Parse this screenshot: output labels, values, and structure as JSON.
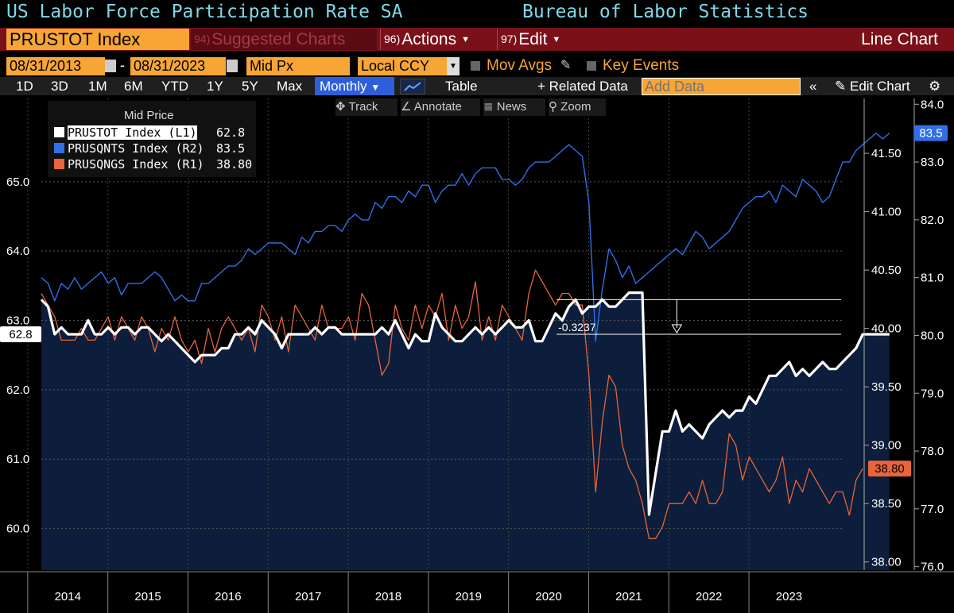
{
  "header": {
    "title": "US Labor Force Participation Rate SA",
    "source": "Bureau of Labor Statistics"
  },
  "menu": {
    "ticker": "PRUSTOT Index",
    "suggested_num": "94)",
    "suggested": "Suggested Charts",
    "actions_num": "96)",
    "actions": "Actions",
    "edit_num": "97)",
    "edit": "Edit",
    "chart_type": "Line Chart"
  },
  "params": {
    "start_date": "08/31/2013",
    "dash": "-",
    "end_date": "08/31/2023",
    "field": "Mid Px",
    "currency": "Local CCY",
    "mov_avgs": "Mov Avgs",
    "key_events": "Key Events"
  },
  "range": {
    "buttons": [
      "1D",
      "3D",
      "1M",
      "6M",
      "YTD",
      "1Y",
      "5Y",
      "Max"
    ],
    "frequency": "Monthly",
    "table": "Table",
    "related": "+ Related Data",
    "add_data_placeholder": "Add Data",
    "edit_chart": "Edit Chart"
  },
  "subtools": {
    "track": "Track",
    "annotate": "Annotate",
    "news": "News",
    "zoom": "Zoom"
  },
  "legend": {
    "title": "Mid Price",
    "rows": [
      {
        "label": "PRUSTOT Index  (L1)",
        "value": "62.8",
        "color": "#ffffff"
      },
      {
        "label": "PRUSQNTS Index  (R2)",
        "value": "83.5",
        "color": "#2f6fe8"
      },
      {
        "label": "PRUSQNGS Index  (R1)",
        "value": "38.80",
        "color": "#e8643a"
      }
    ]
  },
  "chart_data": {
    "type": "line",
    "title": "US Labor Force Participation Rate SA",
    "x_range": [
      2013.67,
      2023.67
    ],
    "x_ticks": [
      "2014",
      "2015",
      "2016",
      "2017",
      "2018",
      "2019",
      "2020",
      "2021",
      "2022",
      "2023"
    ],
    "axes": {
      "L1": {
        "range": [
          59.4,
          66.2
        ],
        "ticks": [
          "60.0",
          "61.0",
          "62.0",
          "63.0",
          "64.0",
          "65.0"
        ]
      },
      "R1": {
        "range": [
          37.93,
          41.97
        ],
        "ticks": [
          "38.00",
          "38.50",
          "39.00",
          "39.50",
          "40.00",
          "40.50",
          "41.00",
          "41.50"
        ]
      },
      "R2": {
        "range": [
          75.94,
          84.1
        ],
        "ticks": [
          "76.0",
          "77.0",
          "78.0",
          "79.0",
          "80.0",
          "81.0",
          "82.0",
          "83.0",
          "84.0"
        ]
      }
    },
    "last_values": {
      "L1": "62.8",
      "R1": "38.80",
      "R2": "83.5"
    },
    "annotation": {
      "label": "-0.3237",
      "from": 63.3,
      "to": 62.8
    },
    "series": [
      {
        "name": "PRUSTOT Index",
        "axis": "L1",
        "color": "#ffffff",
        "x_start": 2013.67,
        "step": 0.0833333,
        "values": [
          63.3,
          63.2,
          62.8,
          62.9,
          62.8,
          62.8,
          62.8,
          63.0,
          62.8,
          62.8,
          62.9,
          62.8,
          62.9,
          62.9,
          62.8,
          62.9,
          62.9,
          62.8,
          62.7,
          62.8,
          62.7,
          62.6,
          62.5,
          62.4,
          62.5,
          62.5,
          62.5,
          62.6,
          62.6,
          62.8,
          62.8,
          62.9,
          62.8,
          63.0,
          62.9,
          62.8,
          62.6,
          62.8,
          62.8,
          62.8,
          62.8,
          62.9,
          62.8,
          62.9,
          62.9,
          62.8,
          62.8,
          62.8,
          62.8,
          62.8,
          62.8,
          62.9,
          62.8,
          63.0,
          62.8,
          62.6,
          62.8,
          62.7,
          62.7,
          63.1,
          62.9,
          62.8,
          62.7,
          62.7,
          62.8,
          62.9,
          62.8,
          62.9,
          62.8,
          62.9,
          63.0,
          62.9,
          62.9,
          63.0,
          62.7,
          62.7,
          62.9,
          63.1,
          63.0,
          63.2,
          63.3,
          63.1,
          63.2,
          63.2,
          63.3,
          63.2,
          63.2,
          63.3,
          63.4,
          63.4,
          63.4,
          60.2,
          60.8,
          61.4,
          61.4,
          61.7,
          61.4,
          61.5,
          61.4,
          61.3,
          61.5,
          61.6,
          61.7,
          61.6,
          61.7,
          61.7,
          61.9,
          61.8,
          62.0,
          62.2,
          62.2,
          62.3,
          62.4,
          62.2,
          62.3,
          62.2,
          62.3,
          62.4,
          62.3,
          62.3,
          62.4,
          62.5,
          62.6,
          62.8,
          62.8,
          62.8,
          62.8,
          62.8
        ]
      },
      {
        "name": "PRUSQNTS Index",
        "axis": "R2",
        "color": "#2f6fe8",
        "x_start": 2013.67,
        "step": 0.0833333,
        "values": [
          81.0,
          80.9,
          80.6,
          80.9,
          80.8,
          81.0,
          80.8,
          80.9,
          81.0,
          81.1,
          80.9,
          81.0,
          80.7,
          80.9,
          80.9,
          80.9,
          81.0,
          81.1,
          81.0,
          80.8,
          80.6,
          80.7,
          80.6,
          80.6,
          80.9,
          80.9,
          81.0,
          81.1,
          81.2,
          81.2,
          81.3,
          81.5,
          81.4,
          81.5,
          81.6,
          81.6,
          81.6,
          81.5,
          81.4,
          81.7,
          81.6,
          81.8,
          81.8,
          81.9,
          81.9,
          81.8,
          82.0,
          82.1,
          82.0,
          82.0,
          82.3,
          82.2,
          82.4,
          82.4,
          82.3,
          82.5,
          82.4,
          82.6,
          82.6,
          82.3,
          82.5,
          82.6,
          82.6,
          82.8,
          82.6,
          82.8,
          82.9,
          82.9,
          82.9,
          82.7,
          82.7,
          82.6,
          82.7,
          82.9,
          83.0,
          83.0,
          83.0,
          83.1,
          83.2,
          83.3,
          83.2,
          83.1,
          82.3,
          79.9,
          80.8,
          81.5,
          81.3,
          81.0,
          81.2,
          80.9,
          81.0,
          81.1,
          81.2,
          81.3,
          81.4,
          81.5,
          81.4,
          81.6,
          81.8,
          81.7,
          81.5,
          81.6,
          81.7,
          81.8,
          82.0,
          82.2,
          82.3,
          82.4,
          82.4,
          82.5,
          82.3,
          82.6,
          82.5,
          82.4,
          82.7,
          82.6,
          82.5,
          82.3,
          82.4,
          82.7,
          83.0,
          83.0,
          83.2,
          83.3,
          83.4,
          83.5,
          83.4,
          83.5
        ]
      },
      {
        "name": "PRUSQNGS Index",
        "axis": "R1",
        "color": "#e8643a",
        "x_start": 2013.67,
        "step": 0.0833333,
        "values": [
          40.3,
          40.2,
          40.1,
          39.9,
          39.9,
          39.9,
          40.0,
          39.9,
          39.9,
          40.0,
          40.1,
          39.9,
          40.1,
          40.0,
          39.9,
          40.1,
          40.0,
          39.8,
          40.0,
          39.9,
          40.1,
          39.9,
          39.8,
          39.9,
          39.7,
          40.0,
          39.8,
          40.0,
          40.1,
          40.0,
          39.9,
          40.0,
          39.8,
          40.2,
          40.1,
          39.9,
          40.1,
          39.8,
          40.2,
          40.1,
          40.0,
          39.9,
          40.2,
          40.0,
          40.0,
          40.0,
          40.1,
          39.9,
          40.3,
          40.2,
          39.9,
          39.6,
          39.7,
          40.2,
          40.0,
          39.9,
          40.2,
          40.0,
          40.2,
          40.1,
          40.3,
          39.9,
          40.2,
          40.0,
          40.1,
          40.4,
          39.9,
          40.1,
          39.9,
          40.2,
          40.1,
          40.0,
          39.9,
          40.3,
          40.5,
          40.4,
          40.3,
          40.2,
          40.3,
          40.3,
          40.2,
          40.2,
          39.6,
          38.6,
          39.2,
          39.6,
          39.5,
          39.0,
          38.8,
          38.7,
          38.5,
          38.2,
          38.2,
          38.3,
          38.5,
          38.5,
          38.5,
          38.6,
          38.5,
          38.7,
          38.5,
          38.5,
          38.6,
          39.1,
          39.0,
          38.7,
          38.9,
          38.8,
          38.7,
          38.6,
          38.7,
          38.9,
          38.5,
          38.7,
          38.6,
          38.8,
          38.7,
          38.6,
          38.5,
          38.6,
          38.6,
          38.4,
          38.7,
          38.8
        ]
      }
    ]
  }
}
